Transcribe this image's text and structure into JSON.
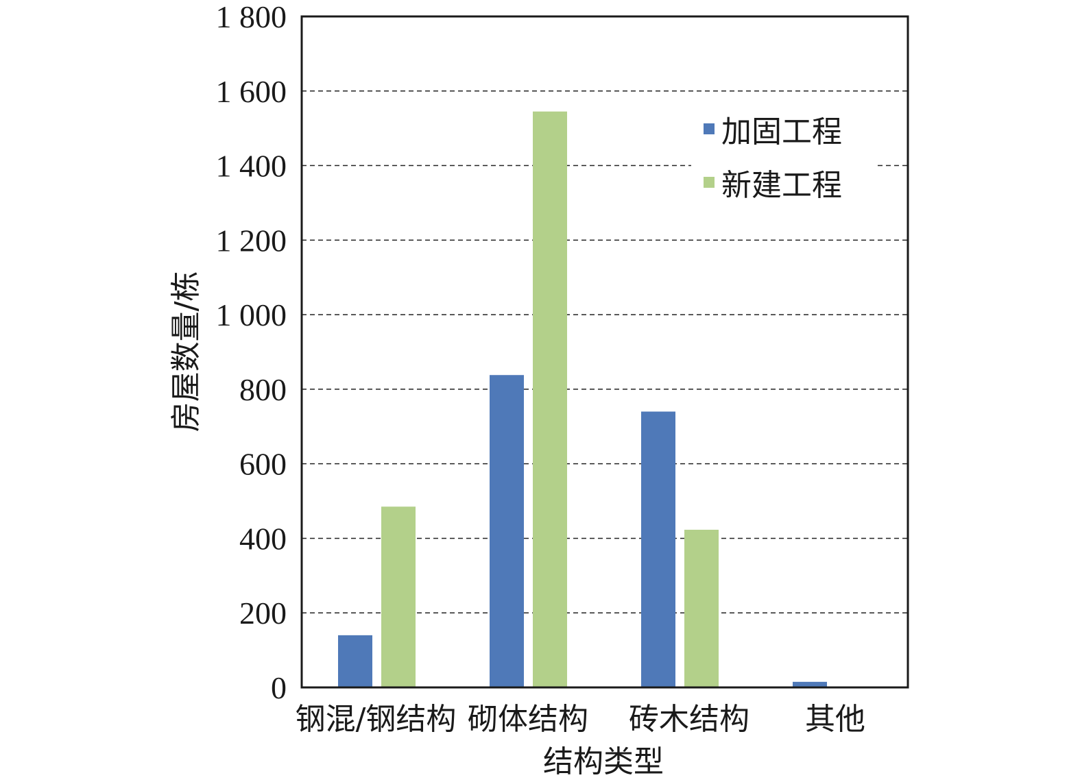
{
  "chart_data": {
    "type": "bar",
    "categories": [
      "钢混/钢结构",
      "砌体结构",
      "砖木结构",
      "其他"
    ],
    "series": [
      {
        "name": "加固工程",
        "values": [
          140,
          838,
          740,
          15
        ],
        "color": "#4f79b8"
      },
      {
        "name": "新建工程",
        "values": [
          485,
          1545,
          423,
          0
        ],
        "color": "#b3d08a"
      }
    ],
    "xlabel": "结构类型",
    "ylabel": "房屋数量/栋",
    "ylim": [
      0,
      1800
    ],
    "yticks": [
      0,
      200,
      400,
      600,
      800,
      1000,
      1200,
      1400,
      1600,
      1800
    ],
    "ytick_labels": [
      "0",
      "200",
      "400",
      "600",
      "800",
      "1 000",
      "1 200",
      "1 400",
      "1 600",
      "1 800"
    ],
    "grid": true,
    "legend": "top-right"
  }
}
